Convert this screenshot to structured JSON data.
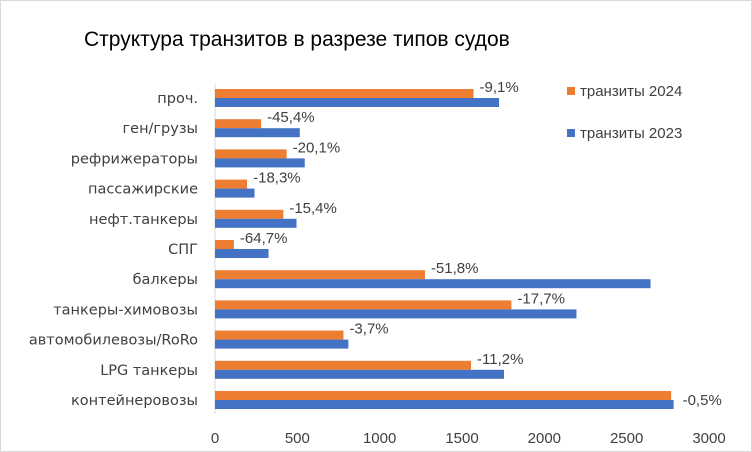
{
  "chart_data": {
    "type": "bar",
    "orientation": "horizontal",
    "title": "Структура транзитов в разрезе типов судов",
    "categories": [
      "проч.",
      "ген/грузы",
      "рефрижераторы",
      "пассажирские",
      "нефт.танкеры",
      "СПГ",
      "балкеры",
      "танкеры-химовозы",
      "автомобилевозы/RoRo",
      "LPG танкеры",
      "контейнеровозы"
    ],
    "series": [
      {
        "name": "транзиты 2024",
        "color": "#ed7d31",
        "values": [
          1570,
          280,
          435,
          195,
          415,
          115,
          1275,
          1800,
          780,
          1555,
          2770
        ]
      },
      {
        "name": "транзиты 2023",
        "color": "#4472c4",
        "values": [
          1725,
          515,
          545,
          240,
          495,
          325,
          2645,
          2195,
          810,
          1755,
          2785
        ]
      }
    ],
    "data_labels": [
      "-9,1%",
      "-45,4%",
      "-20,1%",
      "-18,3%",
      "-15,4%",
      "-64,7%",
      "-51,8%",
      "-17,7%",
      "-3,7%",
      "-11,2%",
      "-0,5%"
    ],
    "xlim": [
      0,
      3000
    ],
    "xticks": [
      0,
      500,
      1000,
      1500,
      2000,
      2500,
      3000
    ],
    "legend_position": "top-right",
    "grid": false
  }
}
